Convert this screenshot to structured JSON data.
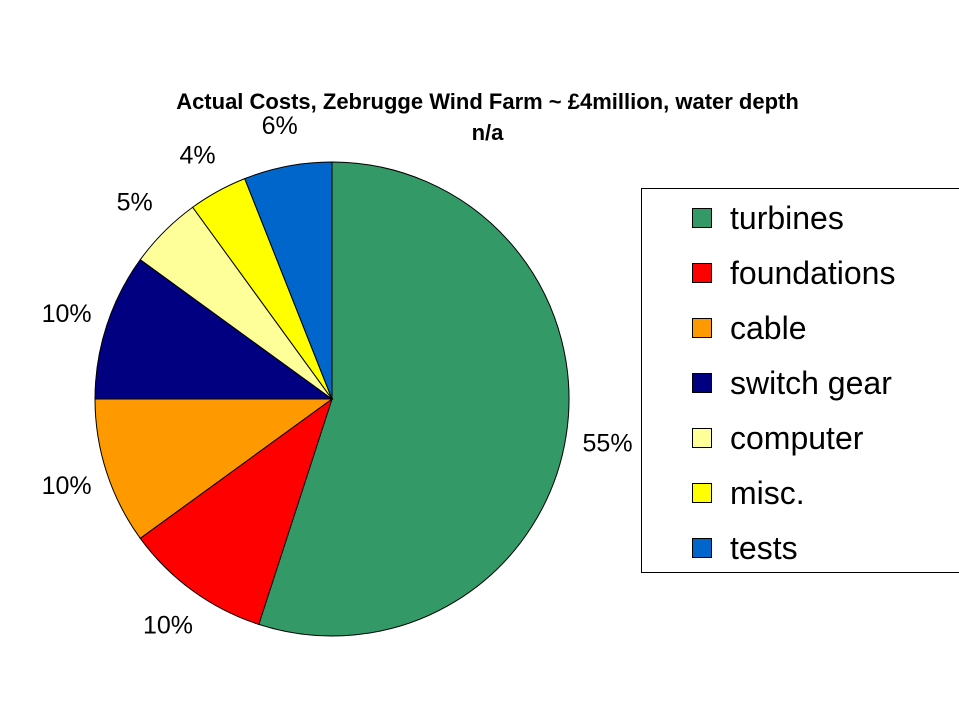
{
  "chart_data": {
    "type": "pie",
    "title": "Actual Costs, Zebrugge Wind Farm ~ £4million, water depth n/a",
    "title_lines": [
      "Actual Costs, Zebrugge Wind Farm ~ £4million, water depth",
      "n/a"
    ],
    "start_angle": "12 o'clock",
    "direction": "clockwise",
    "legend_position": "right",
    "slices": [
      {
        "label": "turbines",
        "value": 55,
        "display": "55%",
        "color": "#339966"
      },
      {
        "label": "foundations",
        "value": 10,
        "display": "10%",
        "color": "#FF0000"
      },
      {
        "label": "cable",
        "value": 10,
        "display": "10%",
        "color": "#FF9900"
      },
      {
        "label": "switch gear",
        "value": 10,
        "display": "10%",
        "color": "#000080"
      },
      {
        "label": "computer",
        "value": 5,
        "display": "5%",
        "color": "#FFFF99"
      },
      {
        "label": "misc.",
        "value": 4,
        "display": "4%",
        "color": "#FFFF00"
      },
      {
        "label": "tests",
        "value": 6,
        "display": "6%",
        "color": "#0066CC"
      }
    ]
  }
}
